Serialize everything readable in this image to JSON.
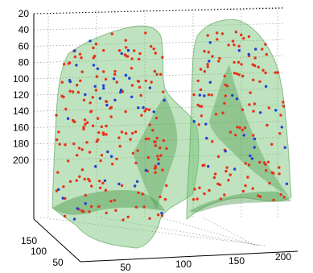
{
  "chart_data": {
    "type": "scatter",
    "subtype": "3d-scatter-with-translucent-surfaces",
    "title": "",
    "xlabel": "",
    "ylabel": "",
    "zlabel": "",
    "grid": true,
    "legend": "none",
    "axes": {
      "z": {
        "ticks": [
          20,
          40,
          60,
          80,
          100,
          120,
          140,
          160,
          180,
          200
        ],
        "direction": "reversed",
        "range": [
          20,
          210
        ]
      },
      "x": {
        "ticks": [
          50,
          100,
          150,
          200
        ],
        "range": [
          20,
          230
        ]
      },
      "y": {
        "ticks": [
          50,
          100,
          150
        ],
        "range": [
          30,
          170
        ]
      }
    },
    "surfaces": [
      {
        "name": "",
        "color": "#5fb85f",
        "opacity": 0.45
      },
      {
        "name": "",
        "color": "#5fb85f",
        "opacity": 0.45
      }
    ],
    "series": [
      {
        "color": "#e8301a",
        "marker": "dot",
        "count_estimate": 300
      },
      {
        "color": "#1f3fd6",
        "marker": "dot",
        "count_estimate": 70
      }
    ]
  }
}
